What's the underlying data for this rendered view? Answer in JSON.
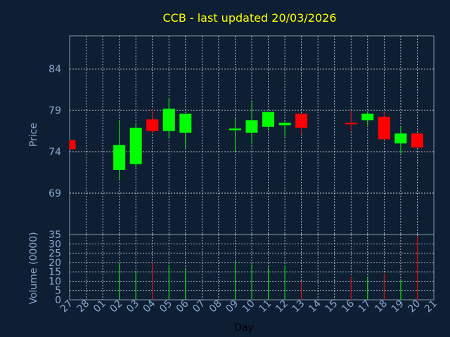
{
  "chart_data": {
    "type": "candlestick",
    "title": "CCB - last updated 20/03/2026",
    "xlabel": "Day",
    "ylabel_price": "Price",
    "ylabel_volume": "Volume (0000)",
    "categories": [
      "27",
      "28",
      "01",
      "02",
      "03",
      "04",
      "05",
      "06",
      "07",
      "08",
      "09",
      "10",
      "11",
      "12",
      "13",
      "14",
      "15",
      "16",
      "17",
      "18",
      "19",
      "20",
      "21"
    ],
    "price_ylim": [
      64,
      88
    ],
    "price_ticks": [
      69,
      74,
      79,
      84
    ],
    "volume_ylim": [
      0,
      35
    ],
    "volume_ticks": [
      0,
      5,
      10,
      15,
      20,
      25,
      30,
      35
    ],
    "volume_tick_labels": [
      "0",
      "5",
      "10",
      "15",
      "20",
      "25",
      "30",
      "35"
    ],
    "grid": true,
    "colors": {
      "background": "#0e1f33",
      "up": "#00ff00",
      "down": "#ff0000",
      "grid": "#ffffff",
      "title": "#ffff00",
      "axis_text": "#8aa8d0"
    },
    "candles": [
      {
        "day": "27",
        "open": 75.4,
        "high": 75.4,
        "low": 74.3,
        "close": 74.3,
        "volume": 0
      },
      {
        "day": "02",
        "open": 71.8,
        "high": 77.7,
        "low": 70.6,
        "close": 74.8,
        "volume": 20
      },
      {
        "day": "03",
        "open": 72.5,
        "high": 77.3,
        "low": 72.1,
        "close": 76.9,
        "volume": 15.5
      },
      {
        "day": "04",
        "open": 77.9,
        "high": 79.2,
        "low": 76.3,
        "close": 76.5,
        "volume": 20
      },
      {
        "day": "05",
        "open": 76.5,
        "high": 80.4,
        "low": 75.6,
        "close": 79.2,
        "volume": 18.5
      },
      {
        "day": "06",
        "open": 76.3,
        "high": 78.6,
        "low": 74.4,
        "close": 78.6,
        "volume": 16.5
      },
      {
        "day": "09",
        "open": 76.6,
        "high": 78.0,
        "low": 74.0,
        "close": 76.8,
        "volume": 20.5
      },
      {
        "day": "10",
        "open": 76.3,
        "high": 80.0,
        "low": 74.9,
        "close": 77.8,
        "volume": 19
      },
      {
        "day": "11",
        "open": 77.0,
        "high": 78.8,
        "low": 76.6,
        "close": 78.8,
        "volume": 17.5
      },
      {
        "day": "12",
        "open": 77.2,
        "high": 77.6,
        "low": 75.8,
        "close": 77.5,
        "volume": 18.5
      },
      {
        "day": "13",
        "open": 78.6,
        "high": 78.6,
        "low": 76.1,
        "close": 76.9,
        "volume": 9.5
      },
      {
        "day": "16",
        "open": 77.5,
        "high": 79.0,
        "low": 76.6,
        "close": 77.3,
        "volume": 12.5
      },
      {
        "day": "17",
        "open": 77.8,
        "high": 78.9,
        "low": 77.2,
        "close": 78.6,
        "volume": 12.5
      },
      {
        "day": "18",
        "open": 78.2,
        "high": 78.8,
        "low": 75.4,
        "close": 75.5,
        "volume": 14
      },
      {
        "day": "19",
        "open": 75.0,
        "high": 77.0,
        "low": 73.8,
        "close": 76.2,
        "volume": 10.5
      },
      {
        "day": "20",
        "open": 76.2,
        "high": 76.2,
        "low": 74.5,
        "close": 74.5,
        "volume": 34
      }
    ]
  }
}
